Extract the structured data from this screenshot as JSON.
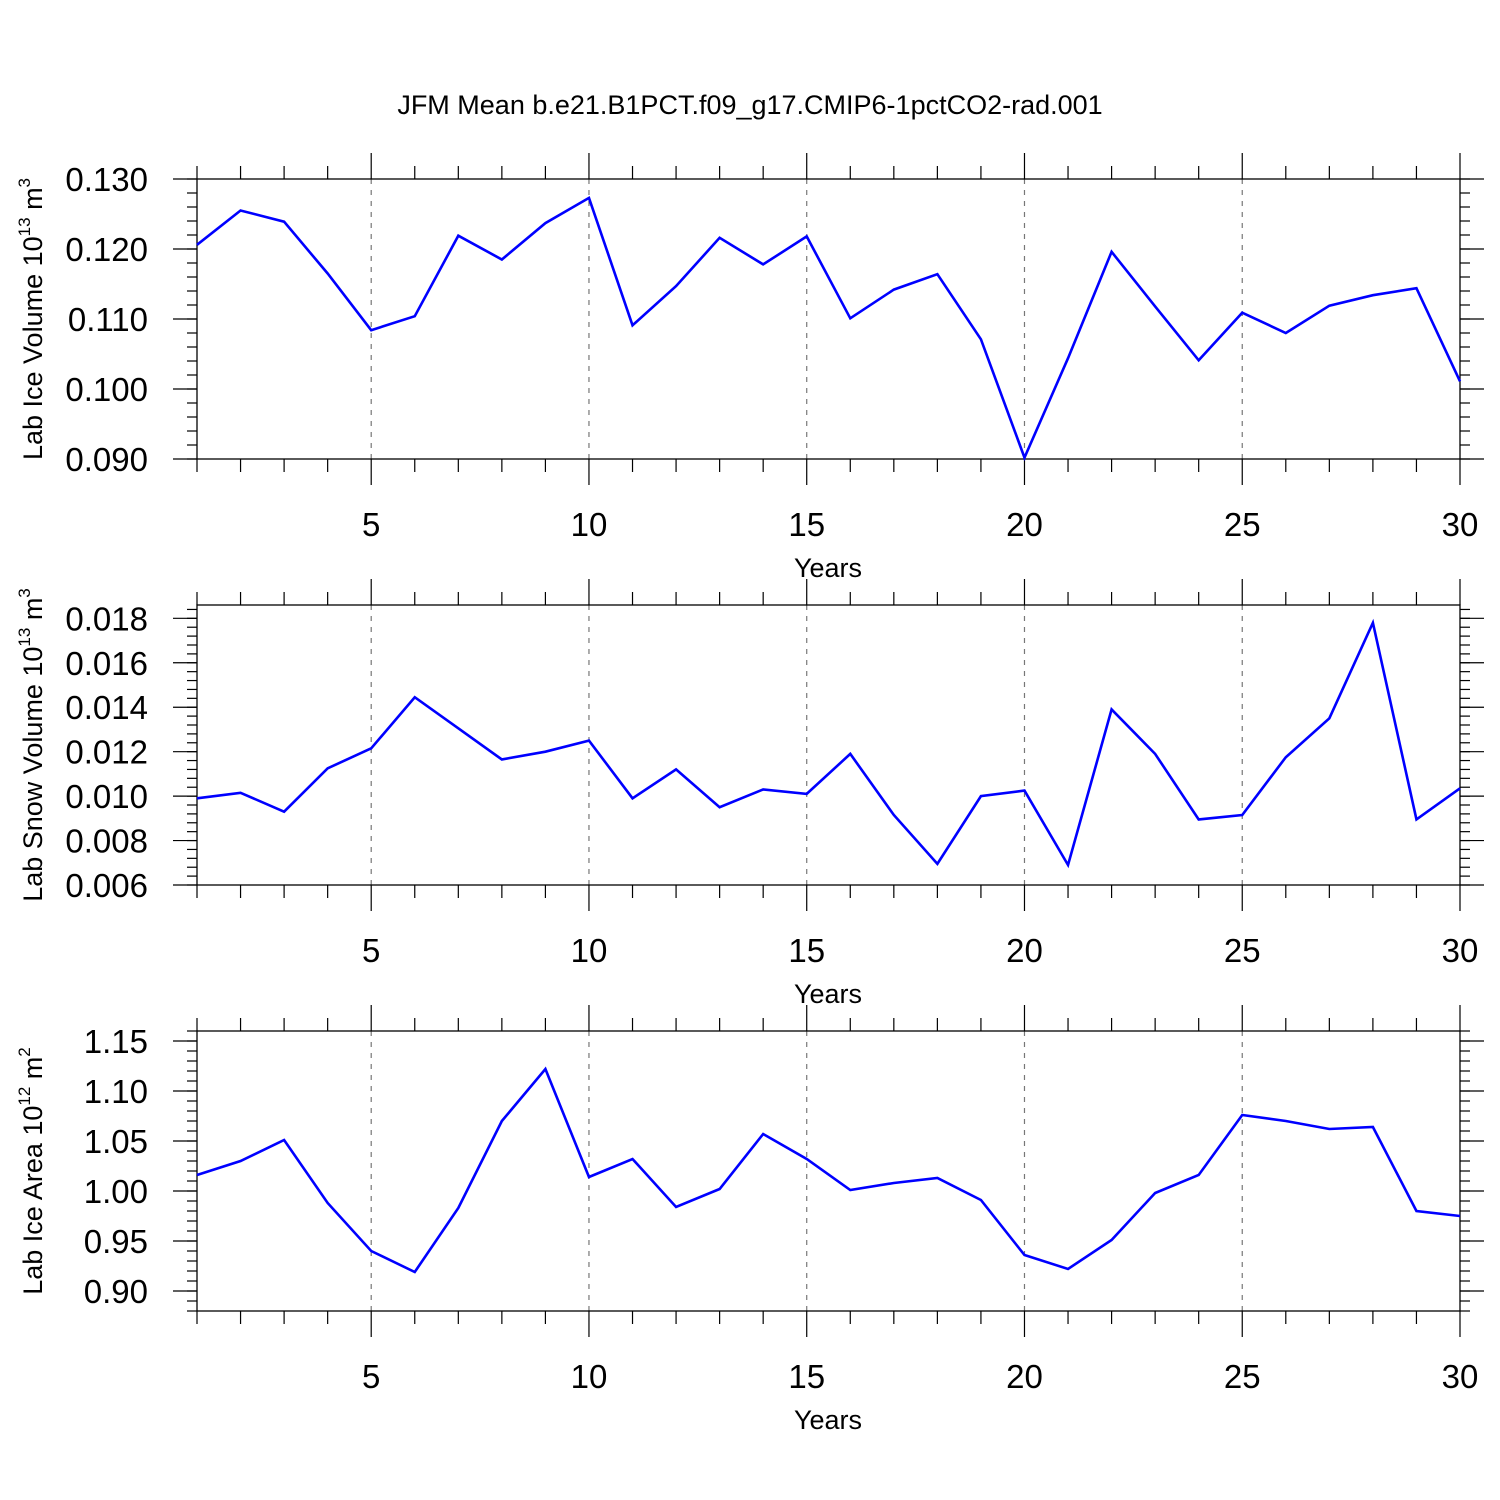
{
  "title": "JFM Mean b.e21.B1PCT.f09_g17.CMIP6-1pctCO2-rad.001",
  "line_color": "#0000ff",
  "chart_data": [
    {
      "type": "line",
      "ylabel": "Lab Ice Volume",
      "ylabel_unit": "10",
      "ylabel_exp": "13",
      "ylabel_unit_tail": "m",
      "ylabel_unit_exp": "3",
      "xlabel": "Years",
      "xlim": [
        1,
        30
      ],
      "ylim": [
        0.09,
        0.13
      ],
      "x_ticks": [
        5,
        10,
        15,
        20,
        25,
        30
      ],
      "x_tick_labels": [
        "5",
        "10",
        "15",
        "20",
        "25",
        "30"
      ],
      "y_ticks": [
        0.09,
        0.1,
        0.11,
        0.12,
        0.13
      ],
      "y_tick_labels": [
        "0.090",
        "0.100",
        "0.110",
        "0.120",
        "0.130"
      ],
      "y_minor_step": 0.002,
      "grid": "x-dashed",
      "x": [
        1,
        2,
        3,
        4,
        5,
        6,
        7,
        8,
        9,
        10,
        11,
        12,
        13,
        14,
        15,
        16,
        17,
        18,
        19,
        20,
        21,
        22,
        23,
        24,
        25,
        26,
        27,
        28,
        29,
        30
      ],
      "series": [
        {
          "values": [
            0.1206,
            0.1255,
            0.1239,
            0.1165,
            0.1084,
            0.1104,
            0.1219,
            0.1185,
            0.1237,
            0.1273,
            0.1091,
            0.1147,
            0.1216,
            0.1178,
            0.1218,
            0.1101,
            0.1142,
            0.1164,
            0.1071,
            0.0902,
            0.1044,
            0.1196,
            0.1118,
            0.1041,
            0.1109,
            0.108,
            0.1119,
            0.1134,
            0.1144,
            0.1011
          ]
        }
      ]
    },
    {
      "type": "line",
      "ylabel": "Lab Snow Volume",
      "ylabel_unit": "10",
      "ylabel_exp": "13",
      "ylabel_unit_tail": "m",
      "ylabel_unit_exp": "3",
      "xlabel": "Years",
      "xlim": [
        1,
        30
      ],
      "ylim": [
        0.006,
        0.0186
      ],
      "x_ticks": [
        5,
        10,
        15,
        20,
        25,
        30
      ],
      "x_tick_labels": [
        "5",
        "10",
        "15",
        "20",
        "25",
        "30"
      ],
      "y_ticks": [
        0.006,
        0.008,
        0.01,
        0.012,
        0.014,
        0.016,
        0.018
      ],
      "y_tick_labels": [
        "0.006",
        "0.008",
        "0.010",
        "0.012",
        "0.014",
        "0.016",
        "0.018"
      ],
      "y_minor_step": 0.0004,
      "grid": "x-dashed",
      "x": [
        1,
        2,
        3,
        4,
        5,
        6,
        7,
        8,
        9,
        10,
        11,
        12,
        13,
        14,
        15,
        16,
        17,
        18,
        19,
        20,
        21,
        22,
        23,
        24,
        25,
        26,
        27,
        28,
        29,
        30
      ],
      "series": [
        {
          "values": [
            0.0099,
            0.01015,
            0.0093,
            0.01125,
            0.01215,
            0.01445,
            0.01305,
            0.01165,
            0.012,
            0.0125,
            0.0099,
            0.0112,
            0.0095,
            0.0103,
            0.0101,
            0.0119,
            0.00915,
            0.00695,
            0.01,
            0.01025,
            0.0069,
            0.0139,
            0.0119,
            0.00895,
            0.00915,
            0.01175,
            0.0135,
            0.0178,
            0.00895,
            0.01035
          ]
        }
      ]
    },
    {
      "type": "line",
      "ylabel": "Lab Ice Area",
      "ylabel_unit": "10",
      "ylabel_exp": "12",
      "ylabel_unit_tail": "m",
      "ylabel_unit_exp": "2",
      "xlabel": "Years",
      "xlim": [
        1,
        30
      ],
      "ylim": [
        0.88,
        1.16
      ],
      "x_ticks": [
        5,
        10,
        15,
        20,
        25,
        30
      ],
      "x_tick_labels": [
        "5",
        "10",
        "15",
        "20",
        "25",
        "30"
      ],
      "y_ticks": [
        0.9,
        0.95,
        1.0,
        1.05,
        1.1,
        1.15
      ],
      "y_tick_labels": [
        "0.90",
        "0.95",
        "1.00",
        "1.05",
        "1.10",
        "1.15"
      ],
      "y_minor_step": 0.01,
      "grid": "x-dashed",
      "x": [
        1,
        2,
        3,
        4,
        5,
        6,
        7,
        8,
        9,
        10,
        11,
        12,
        13,
        14,
        15,
        16,
        17,
        18,
        19,
        20,
        21,
        22,
        23,
        24,
        25,
        26,
        27,
        28,
        29,
        30
      ],
      "series": [
        {
          "values": [
            1.016,
            1.03,
            1.051,
            0.988,
            0.94,
            0.919,
            0.983,
            1.07,
            1.122,
            1.014,
            1.032,
            0.984,
            1.002,
            1.057,
            1.032,
            1.001,
            1.008,
            1.013,
            0.991,
            0.936,
            0.922,
            0.951,
            0.998,
            1.016,
            1.076,
            1.07,
            1.062,
            1.064,
            0.98,
            0.975
          ]
        }
      ]
    }
  ]
}
